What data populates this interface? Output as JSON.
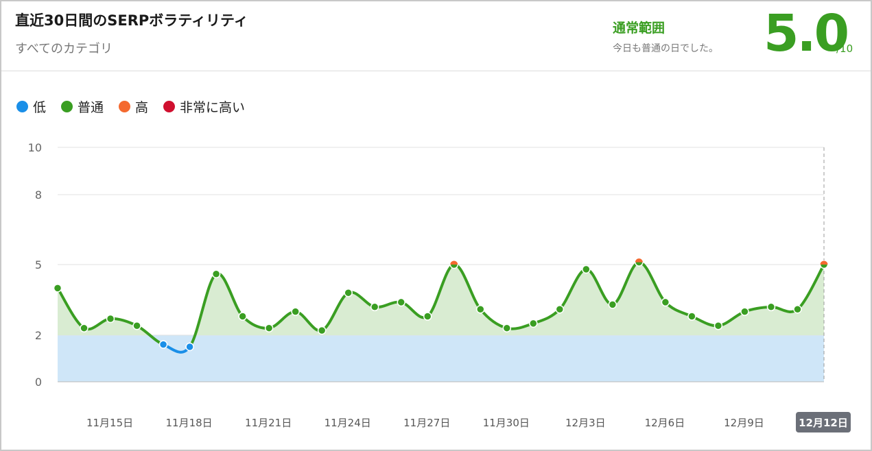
{
  "header": {
    "title": "直近30日間のSERPボラティリティ",
    "subtitle": "すべてのカテゴリ",
    "status_label": "通常範囲",
    "status_desc": "今日も普通の日でした。",
    "score": "5.0",
    "score_max": "/10"
  },
  "legend": [
    {
      "label": "低",
      "color": "#1a8fe8"
    },
    {
      "label": "普通",
      "color": "#3a9e22"
    },
    {
      "label": "高",
      "color": "#f4692f"
    },
    {
      "label": "非常に高い",
      "color": "#d0102f"
    }
  ],
  "colors": {
    "accent": "#3a9e22",
    "low": "#1a8fe8",
    "normal": "#3a9e22",
    "high": "#f4692f",
    "very_high": "#d0102f",
    "low_band": "#cfe6f8",
    "normal_fill": "#d9ecd2"
  },
  "chart_data": {
    "type": "line",
    "ylim": [
      0,
      10
    ],
    "y_ticks": [
      0,
      2,
      5,
      8,
      10
    ],
    "x_tick_labels": [
      "11月15日",
      "11月18日",
      "11月21日",
      "11月24日",
      "11月27日",
      "11月30日",
      "12月3日",
      "12月6日",
      "12月9日",
      "12月12日"
    ],
    "highlighted_tick": "12月12日",
    "bands": [
      {
        "level": "low",
        "range": [
          0,
          2
        ]
      },
      {
        "level": "normal",
        "range": [
          2,
          5
        ]
      }
    ],
    "series": [
      {
        "values": [
          4.0,
          2.3,
          2.7,
          2.4,
          1.6,
          1.5,
          4.6,
          2.8,
          2.3,
          3.0,
          2.2,
          3.8,
          3.2,
          3.4,
          2.8,
          5.0,
          3.1,
          2.3,
          2.5,
          3.1,
          4.8,
          3.3,
          5.1,
          3.4,
          2.8,
          2.4,
          3.0,
          3.2,
          3.1,
          5.0
        ],
        "levels": [
          "normal",
          "normal",
          "normal",
          "normal",
          "low",
          "low",
          "normal",
          "normal",
          "normal",
          "normal",
          "normal",
          "normal",
          "normal",
          "normal",
          "normal",
          "high",
          "normal",
          "normal",
          "normal",
          "normal",
          "normal",
          "normal",
          "high",
          "normal",
          "normal",
          "normal",
          "normal",
          "normal",
          "normal",
          "high"
        ]
      }
    ]
  }
}
